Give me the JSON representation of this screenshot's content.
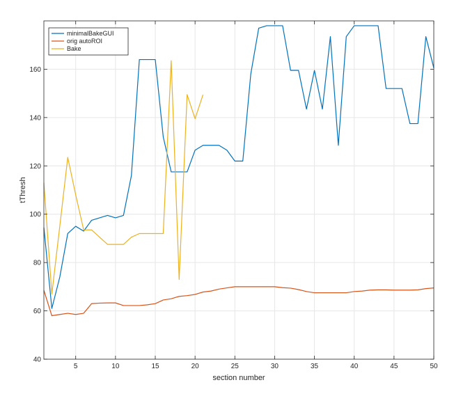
{
  "chart_data": {
    "type": "line",
    "title": "",
    "xlabel": "section number",
    "ylabel": "tThresh",
    "xlim": [
      1,
      50
    ],
    "ylim": [
      40,
      180
    ],
    "xticks": [
      5,
      10,
      15,
      20,
      25,
      30,
      35,
      40,
      45,
      50
    ],
    "yticks": [
      40,
      60,
      80,
      100,
      120,
      140,
      160
    ],
    "grid": true,
    "legend_position": "top-left",
    "series": [
      {
        "name": "minimalBakeGUI",
        "color": "#0072BD",
        "x": [
          1,
          2,
          3,
          4,
          5,
          6,
          7,
          8,
          9,
          10,
          11,
          12,
          13,
          14,
          15,
          16,
          17,
          18,
          19,
          20,
          21,
          22,
          23,
          24,
          25,
          26,
          27,
          28,
          29,
          30,
          31,
          32,
          33,
          34,
          35,
          36,
          37,
          38,
          39,
          40,
          41,
          42,
          43,
          44,
          45,
          46,
          47,
          48,
          49,
          50
        ],
        "values": [
          94.5,
          61,
          74,
          92,
          95,
          93,
          97.5,
          98.5,
          99.5,
          98.5,
          99.5,
          116,
          164,
          164,
          164,
          132,
          117.5,
          117.5,
          117.5,
          126.5,
          128.5,
          128.5,
          128.5,
          126.5,
          122,
          122,
          158,
          177,
          178,
          178,
          178,
          159.5,
          159.5,
          143.5,
          159.5,
          143.5,
          173.5,
          128.5,
          173.5,
          178,
          178,
          178,
          178,
          152,
          152,
          152,
          137.5,
          137.5,
          173.5,
          160.5
        ]
      },
      {
        "name": "orig autoROI",
        "color": "#D95319",
        "x": [
          1,
          2,
          3,
          4,
          5,
          6,
          7,
          8,
          9,
          10,
          11,
          12,
          13,
          14,
          15,
          16,
          17,
          18,
          19,
          20,
          21,
          22,
          23,
          24,
          25,
          26,
          27,
          28,
          29,
          30,
          31,
          32,
          33,
          34,
          35,
          36,
          37,
          38,
          39,
          40,
          41,
          42,
          43,
          44,
          45,
          46,
          47,
          48,
          49,
          50
        ],
        "values": [
          68.5,
          58,
          58.5,
          59,
          58.5,
          59,
          63,
          63.2,
          63.3,
          63.3,
          62.2,
          62.2,
          62.2,
          62.5,
          63,
          64.5,
          65,
          66,
          66.3,
          66.8,
          67.8,
          68.2,
          69,
          69.5,
          70,
          70,
          70,
          70,
          70,
          70,
          69.6,
          69.4,
          68.8,
          68,
          67.5,
          67.5,
          67.5,
          67.5,
          67.5,
          68,
          68.2,
          68.6,
          68.7,
          68.7,
          68.6,
          68.6,
          68.6,
          68.7,
          69.2,
          69.5
        ]
      },
      {
        "name": "Bake",
        "color": "#EDB120",
        "x": [
          1,
          2,
          3,
          4,
          5,
          6,
          7,
          8,
          9,
          10,
          11,
          12,
          13,
          14,
          15,
          16,
          17,
          18,
          19,
          20,
          21
        ],
        "values": [
          113,
          67,
          95,
          123.5,
          108,
          93.5,
          93.5,
          90.5,
          87.5,
          87.5,
          87.5,
          90.5,
          92,
          92,
          92,
          92,
          163.5,
          73,
          149.5,
          139.5,
          149.5
        ]
      }
    ]
  }
}
